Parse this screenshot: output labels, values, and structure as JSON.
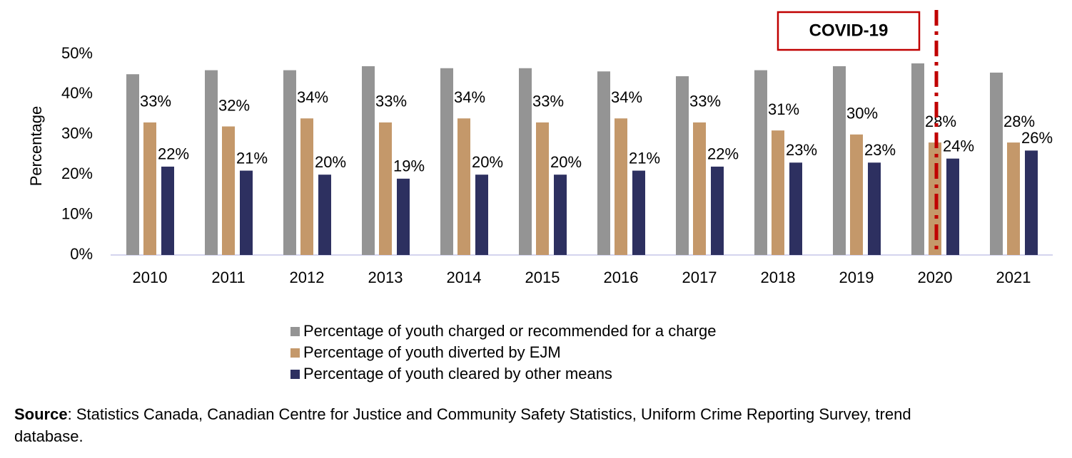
{
  "chart_data": {
    "type": "bar",
    "y_label": "Percentage",
    "categories": [
      "2010",
      "2011",
      "2012",
      "2013",
      "2014",
      "2015",
      "2016",
      "2017",
      "2018",
      "2019",
      "2020",
      "2021"
    ],
    "series": [
      {
        "name": "Percentage of youth charged or recommended for a charge",
        "color": "#949494",
        "values": [
          45,
          46,
          46,
          47,
          46.5,
          46.5,
          45.7,
          44.5,
          46,
          47,
          47.7,
          45.4
        ]
      },
      {
        "name": "Percentage of youth diverted by EJM",
        "color": "#c4986a",
        "values": [
          33,
          32,
          34,
          33,
          34,
          33,
          34,
          33,
          31,
          30,
          28,
          28
        ],
        "value_labels": [
          "33%",
          "32%",
          "34%",
          "33%",
          "34%",
          "33%",
          "34%",
          "33%",
          "31%",
          "30%",
          "28%",
          "28%"
        ]
      },
      {
        "name": "Percentage of youth cleared by other means",
        "color": "#2d3060",
        "values": [
          22,
          21,
          20,
          19,
          20,
          20,
          21,
          22,
          23,
          23,
          24,
          26
        ],
        "value_labels": [
          "22%",
          "21%",
          "20%",
          "19%",
          "20%",
          "20%",
          "21%",
          "22%",
          "23%",
          "23%",
          "24%",
          "26%"
        ]
      }
    ],
    "ylim": [
      0,
      50
    ],
    "yticks": [
      {
        "value": 0,
        "label": "0%"
      },
      {
        "value": 10,
        "label": "10%"
      },
      {
        "value": 20,
        "label": "20%"
      },
      {
        "value": 30,
        "label": "30%"
      },
      {
        "value": 40,
        "label": "40%"
      },
      {
        "value": 50,
        "label": "50%"
      }
    ],
    "grid": false,
    "legend": "bottom",
    "annotation": "COVID-19",
    "source": {
      "label": "Source",
      "text": ": Statistics Canada, Canadian Centre for Justice and Community Safety Statistics, Uniform Crime Reporting Survey, trend database."
    }
  }
}
